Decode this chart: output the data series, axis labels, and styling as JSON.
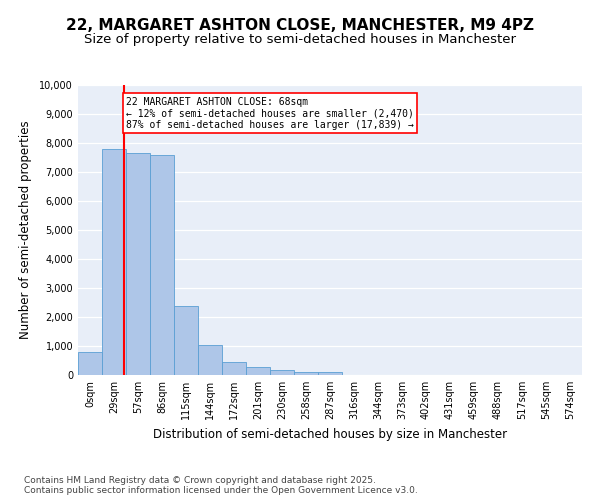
{
  "title": "22, MARGARET ASHTON CLOSE, MANCHESTER, M9 4PZ",
  "subtitle": "Size of property relative to semi-detached houses in Manchester",
  "xlabel": "Distribution of semi-detached houses by size in Manchester",
  "ylabel": "Number of semi-detached properties",
  "bin_labels": [
    "0sqm",
    "29sqm",
    "57sqm",
    "86sqm",
    "115sqm",
    "144sqm",
    "172sqm",
    "201sqm",
    "230sqm",
    "258sqm",
    "287sqm",
    "316sqm",
    "344sqm",
    "373sqm",
    "402sqm",
    "431sqm",
    "459sqm",
    "488sqm",
    "517sqm",
    "545sqm",
    "574sqm"
  ],
  "bar_values": [
    800,
    7800,
    7650,
    7600,
    2380,
    1040,
    450,
    280,
    160,
    115,
    90,
    0,
    0,
    0,
    0,
    0,
    0,
    0,
    0,
    0,
    0
  ],
  "bar_color": "#aec6e8",
  "bar_edge_color": "#5a9fd4",
  "vline_x": 1.4,
  "highlight_color": "#ff0000",
  "annotation_text_line1": "22 MARGARET ASHTON CLOSE: 68sqm",
  "annotation_text_line2": "← 12% of semi-detached houses are smaller (2,470)",
  "annotation_text_line3": "87% of semi-detached houses are larger (17,839) →",
  "ylim": [
    0,
    10000
  ],
  "yticks": [
    0,
    1000,
    2000,
    3000,
    4000,
    5000,
    6000,
    7000,
    8000,
    9000,
    10000
  ],
  "background_color": "#e8eef8",
  "grid_color": "#ffffff",
  "footer_text": "Contains HM Land Registry data © Crown copyright and database right 2025.\nContains public sector information licensed under the Open Government Licence v3.0.",
  "title_fontsize": 11,
  "subtitle_fontsize": 9.5,
  "axis_label_fontsize": 8.5,
  "tick_fontsize": 7,
  "annotation_fontsize": 7,
  "footer_fontsize": 6.5
}
